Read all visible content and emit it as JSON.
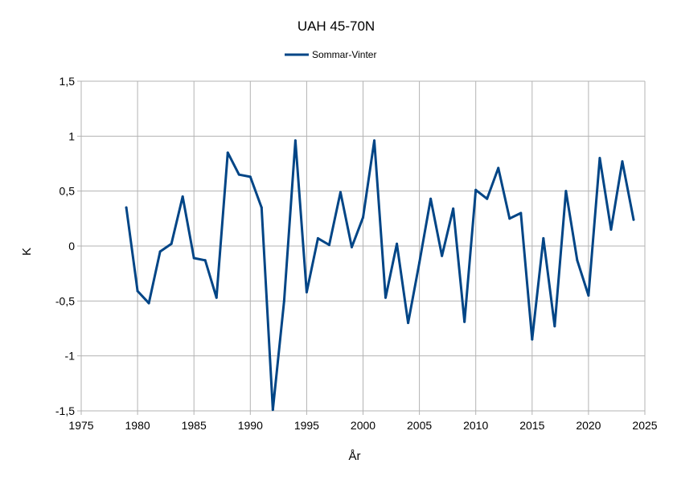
{
  "chart_data": {
    "type": "line",
    "title": "UAH 45-70N",
    "xlabel": "År",
    "ylabel": "K",
    "xlim": [
      1975,
      2025
    ],
    "ylim": [
      -1.5,
      1.5
    ],
    "x_ticks": [
      "1975",
      "1980",
      "1985",
      "1990",
      "1995",
      "2000",
      "2005",
      "2010",
      "2015",
      "2020",
      "2025"
    ],
    "y_ticks": [
      "1,5",
      "1",
      "0,5",
      "0",
      "-0,5",
      "-1",
      "-1,5"
    ],
    "grid": true,
    "legend_position": "top-center",
    "series": [
      {
        "name": "Sommar-Vinter",
        "color": "#004586",
        "x": [
          1979,
          1980,
          1981,
          1982,
          1983,
          1984,
          1985,
          1986,
          1987,
          1988,
          1989,
          1990,
          1991,
          1992,
          1993,
          1994,
          1995,
          1996,
          1997,
          1998,
          1999,
          2000,
          2001,
          2002,
          2003,
          2004,
          2005,
          2006,
          2007,
          2008,
          2009,
          2010,
          2011,
          2012,
          2013,
          2014,
          2015,
          2016,
          2017,
          2018,
          2019,
          2020,
          2021,
          2022,
          2023,
          2024
        ],
        "values": [
          0.35,
          -0.41,
          -0.52,
          -0.05,
          0.02,
          0.45,
          -0.11,
          -0.13,
          -0.47,
          0.85,
          0.65,
          0.63,
          0.35,
          -1.49,
          -0.5,
          0.96,
          -0.42,
          0.07,
          0.01,
          0.49,
          -0.01,
          0.26,
          0.96,
          -0.47,
          0.02,
          -0.7,
          -0.15,
          0.43,
          -0.09,
          0.34,
          -0.69,
          0.51,
          0.43,
          0.71,
          0.25,
          0.3,
          -0.85,
          0.07,
          -0.73,
          0.5,
          -0.13,
          -0.45,
          0.8,
          0.15,
          0.77,
          0.24
        ]
      }
    ]
  }
}
